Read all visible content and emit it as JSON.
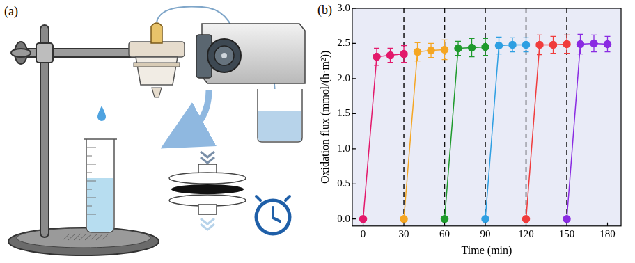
{
  "panel_a": {
    "label": "(a)"
  },
  "chart_data": {
    "panel": "(b)",
    "type": "line",
    "x_label": "Time (min)",
    "y_label": "Oxidation flux (mmol/(h·m²))",
    "xlim": [
      -8,
      190
    ],
    "xticks": [
      0,
      30,
      60,
      90,
      120,
      150,
      180
    ],
    "ylim": [
      -0.1,
      3.0
    ],
    "yticks": [
      {
        "value": 0,
        "label": "0.0"
      },
      {
        "value": 0.5,
        "label": "0.5"
      },
      {
        "value": 1,
        "label": "1.0"
      },
      {
        "value": 1.5,
        "label": "1.5"
      },
      {
        "value": 2,
        "label": "2.0"
      },
      {
        "value": 2.5,
        "label": "2.5"
      },
      {
        "value": 3,
        "label": "3.0"
      }
    ],
    "grid": false,
    "marker": "circle",
    "line_style": "solid",
    "vlines": [
      30,
      60,
      90,
      120,
      150
    ],
    "series": [
      {
        "color": "#e3196b",
        "x": [
          0,
          10,
          20,
          30
        ],
        "values": [
          0,
          2.31,
          2.33,
          2.35
        ],
        "errors": [
          0,
          0.12,
          0.1,
          0.12
        ]
      },
      {
        "color": "#f5a623",
        "x": [
          30,
          40,
          50,
          60
        ],
        "values": [
          0,
          2.38,
          2.4,
          2.41
        ],
        "errors": [
          0,
          0.13,
          0.1,
          0.14
        ]
      },
      {
        "color": "#1e9a2c",
        "x": [
          60,
          70,
          80,
          90
        ],
        "values": [
          0,
          2.43,
          2.44,
          2.45
        ],
        "errors": [
          0,
          0.1,
          0.13,
          0.12
        ]
      },
      {
        "color": "#2e9fe2",
        "x": [
          90,
          100,
          110,
          120
        ],
        "values": [
          0,
          2.47,
          2.48,
          2.48
        ],
        "errors": [
          0,
          0.12,
          0.1,
          0.1
        ]
      },
      {
        "color": "#f03c3c",
        "x": [
          120,
          130,
          140,
          150
        ],
        "values": [
          0,
          2.48,
          2.48,
          2.49
        ],
        "errors": [
          0,
          0.14,
          0.12,
          0.13
        ]
      },
      {
        "color": "#8a2be2",
        "x": [
          150,
          160,
          170,
          180
        ],
        "values": [
          0,
          2.49,
          2.5,
          2.49
        ],
        "errors": [
          0,
          0.14,
          0.12,
          0.11
        ]
      }
    ]
  }
}
